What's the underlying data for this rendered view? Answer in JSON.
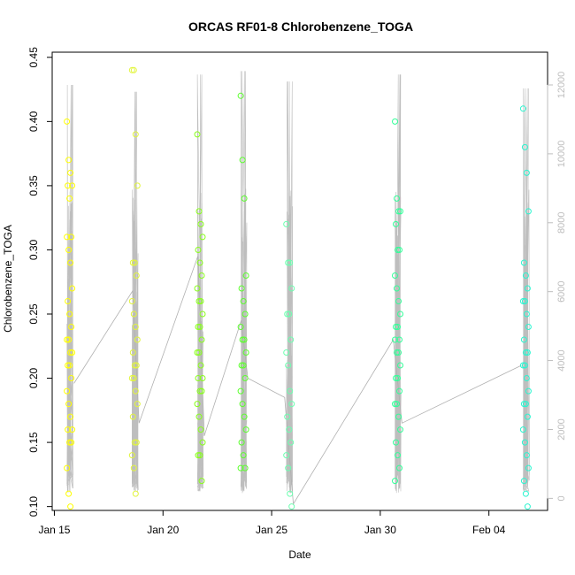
{
  "chart_data": {
    "type": "scatter",
    "title": "ORCAS RF01-8 Chlorobenzene_TOGA",
    "xlabel": "Date",
    "ylabel": "Chlorobenzene_TOGA",
    "x_ticks": [
      "Jan 15",
      "Jan 20",
      "Jan 25",
      "Jan 30",
      "Feb 04"
    ],
    "x_tick_days": [
      15,
      20,
      25,
      30,
      35
    ],
    "xlim_days": [
      14.9,
      37.7
    ],
    "y_ticks": [
      "0.10",
      "0.15",
      "0.20",
      "0.25",
      "0.30",
      "0.35",
      "0.40",
      "0.45"
    ],
    "ylim": [
      0.097,
      0.454
    ],
    "y2_ticks": [
      "0",
      "2000",
      "4000",
      "6000",
      "8000",
      "10000",
      "12000"
    ],
    "y2lim": [
      -350,
      12950
    ],
    "grid": false,
    "colors": {
      "altitude_line": "#bebebe",
      "mean_line": "#b0b0b0",
      "flights": [
        "#ffff00",
        "#e2f53c",
        "#88ff1a",
        "#5cff2e",
        "#6dffb0",
        "#33ff99",
        "#2bf5d0"
      ]
    },
    "flights": [
      {
        "day": 15.7,
        "alt_max": 12000,
        "values": [
          0.4,
          0.37,
          0.36,
          0.35,
          0.35,
          0.34,
          0.31,
          0.31,
          0.3,
          0.29,
          0.27,
          0.26,
          0.25,
          0.24,
          0.23,
          0.23,
          0.22,
          0.22,
          0.21,
          0.21,
          0.2,
          0.19,
          0.18,
          0.17,
          0.16,
          0.16,
          0.15,
          0.15,
          0.13,
          0.11,
          0.1
        ]
      },
      {
        "day": 18.7,
        "alt_max": 11800,
        "values": [
          0.44,
          0.44,
          0.39,
          0.35,
          0.29,
          0.29,
          0.28,
          0.26,
          0.25,
          0.24,
          0.23,
          0.22,
          0.21,
          0.21,
          0.2,
          0.2,
          0.19,
          0.18,
          0.17,
          0.15,
          0.15,
          0.14,
          0.13,
          0.11
        ]
      },
      {
        "day": 21.7,
        "alt_max": 12300,
        "values": [
          0.39,
          0.33,
          0.32,
          0.31,
          0.3,
          0.29,
          0.28,
          0.27,
          0.26,
          0.26,
          0.25,
          0.24,
          0.24,
          0.23,
          0.22,
          0.22,
          0.21,
          0.2,
          0.2,
          0.19,
          0.19,
          0.18,
          0.17,
          0.16,
          0.15,
          0.14,
          0.14,
          0.12
        ]
      },
      {
        "day": 23.7,
        "alt_max": 12400,
        "values": [
          0.42,
          0.37,
          0.34,
          0.28,
          0.27,
          0.26,
          0.25,
          0.24,
          0.23,
          0.23,
          0.22,
          0.21,
          0.21,
          0.2,
          0.19,
          0.18,
          0.17,
          0.16,
          0.15,
          0.14,
          0.13,
          0.13
        ]
      },
      {
        "day": 25.8,
        "alt_max": 12100,
        "values": [
          0.32,
          0.29,
          0.29,
          0.27,
          0.25,
          0.25,
          0.23,
          0.22,
          0.21,
          0.19,
          0.18,
          0.17,
          0.16,
          0.15,
          0.14,
          0.13,
          0.11,
          0.1
        ]
      },
      {
        "day": 30.8,
        "alt_max": 12300,
        "values": [
          0.4,
          0.34,
          0.33,
          0.33,
          0.32,
          0.3,
          0.3,
          0.28,
          0.27,
          0.26,
          0.25,
          0.24,
          0.24,
          0.23,
          0.23,
          0.22,
          0.22,
          0.21,
          0.2,
          0.2,
          0.19,
          0.18,
          0.18,
          0.17,
          0.16,
          0.15,
          0.14,
          0.13,
          0.12
        ]
      },
      {
        "day": 36.7,
        "alt_max": 11900,
        "values": [
          0.41,
          0.38,
          0.36,
          0.33,
          0.29,
          0.28,
          0.27,
          0.26,
          0.26,
          0.25,
          0.24,
          0.23,
          0.22,
          0.22,
          0.21,
          0.21,
          0.2,
          0.19,
          0.18,
          0.18,
          0.17,
          0.16,
          0.15,
          0.14,
          0.13,
          0.12,
          0.11,
          0.1
        ]
      }
    ],
    "mean_line": [
      {
        "day": 15.9,
        "value": 0.196
      },
      {
        "day": 18.6,
        "value": 0.268
      },
      {
        "day": 18.9,
        "value": 0.165
      },
      {
        "day": 21.6,
        "value": 0.295
      },
      {
        "day": 21.9,
        "value": 0.155
      },
      {
        "day": 23.6,
        "value": 0.245
      },
      {
        "day": 23.9,
        "value": 0.2
      },
      {
        "day": 25.6,
        "value": 0.185
      },
      {
        "day": 26.0,
        "value": 0.102
      },
      {
        "day": 30.6,
        "value": 0.23
      },
      {
        "day": 31.0,
        "value": 0.165
      },
      {
        "day": 36.5,
        "value": 0.21
      }
    ]
  }
}
